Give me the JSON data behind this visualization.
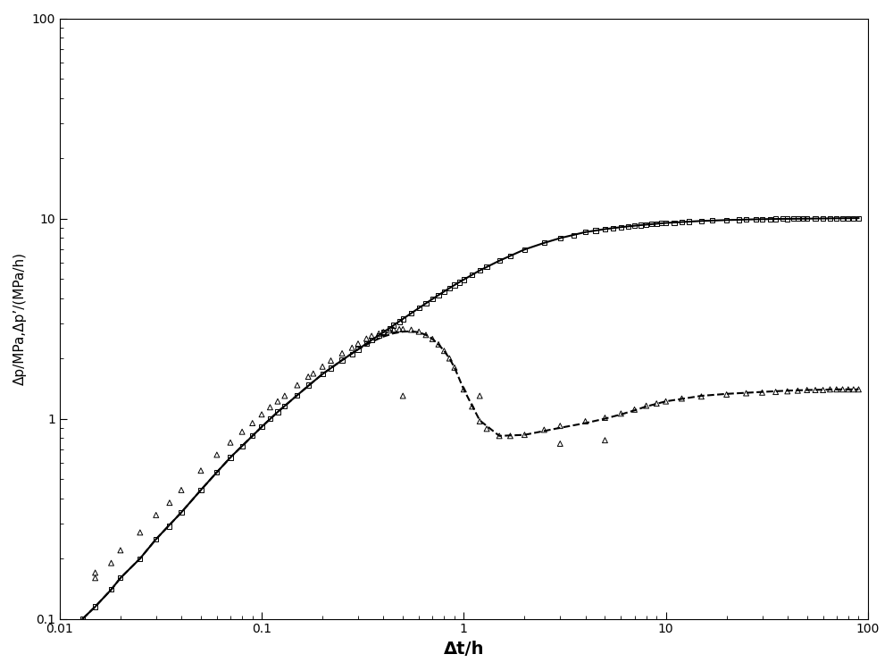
{
  "title": "",
  "xlabel": "Δt/h",
  "ylabel": "Δp/MPa,Δp’/(MPa/h)",
  "xlim": [
    0.01,
    100
  ],
  "ylim": [
    0.1,
    100
  ],
  "background_color": "#ffffff",
  "curve_upper_x": [
    0.013,
    0.015,
    0.018,
    0.02,
    0.025,
    0.03,
    0.04,
    0.05,
    0.06,
    0.07,
    0.08,
    0.09,
    0.1,
    0.12,
    0.15,
    0.18,
    0.2,
    0.25,
    0.3,
    0.35,
    0.4,
    0.45,
    0.5,
    0.6,
    0.7,
    0.8,
    0.9,
    1.0,
    1.2,
    1.5,
    2.0,
    2.5,
    3.0,
    4.0,
    5.0,
    6.0,
    7.0,
    8.0,
    10.0,
    12.0,
    15.0,
    20.0,
    25.0,
    30.0,
    40.0,
    50.0,
    60.0,
    70.0,
    80.0,
    90.0
  ],
  "curve_upper_y": [
    0.1,
    0.115,
    0.14,
    0.16,
    0.2,
    0.25,
    0.34,
    0.44,
    0.54,
    0.64,
    0.73,
    0.82,
    0.91,
    1.08,
    1.31,
    1.53,
    1.67,
    1.96,
    2.22,
    2.47,
    2.7,
    2.93,
    3.15,
    3.57,
    3.96,
    4.32,
    4.65,
    4.95,
    5.5,
    6.15,
    7.0,
    7.55,
    7.98,
    8.55,
    8.85,
    9.05,
    9.2,
    9.32,
    9.5,
    9.6,
    9.72,
    9.82,
    9.88,
    9.92,
    9.96,
    9.98,
    10.0,
    10.02,
    10.03,
    10.04
  ],
  "curve_lower_x": [
    0.013,
    0.015,
    0.018,
    0.02,
    0.025,
    0.03,
    0.04,
    0.05,
    0.06,
    0.07,
    0.08,
    0.09,
    0.1,
    0.12,
    0.15,
    0.18,
    0.2,
    0.25,
    0.3,
    0.35,
    0.4,
    0.45,
    0.5,
    0.55,
    0.6,
    0.65,
    0.7,
    0.75,
    0.8,
    0.85,
    0.9,
    1.0,
    1.2,
    1.5,
    2.0,
    3.0,
    4.0,
    5.0,
    6.0,
    7.0,
    8.0,
    10.0,
    15.0,
    20.0,
    30.0,
    40.0,
    50.0,
    70.0,
    90.0
  ],
  "curve_lower_y": [
    0.1,
    0.115,
    0.14,
    0.16,
    0.2,
    0.25,
    0.34,
    0.44,
    0.54,
    0.64,
    0.73,
    0.82,
    0.91,
    1.08,
    1.31,
    1.53,
    1.67,
    1.96,
    2.22,
    2.42,
    2.57,
    2.67,
    2.72,
    2.73,
    2.7,
    2.62,
    2.5,
    2.35,
    2.18,
    2.0,
    1.8,
    1.4,
    0.98,
    0.82,
    0.83,
    0.9,
    0.95,
    1.0,
    1.05,
    1.1,
    1.15,
    1.22,
    1.3,
    1.33,
    1.36,
    1.38,
    1.39,
    1.4,
    1.4
  ],
  "sq_x": [
    0.013,
    0.015,
    0.018,
    0.02,
    0.025,
    0.03,
    0.035,
    0.04,
    0.05,
    0.06,
    0.07,
    0.08,
    0.09,
    0.1,
    0.11,
    0.12,
    0.13,
    0.15,
    0.17,
    0.2,
    0.22,
    0.25,
    0.28,
    0.3,
    0.33,
    0.35,
    0.38,
    0.4,
    0.43,
    0.45,
    0.48,
    0.5,
    0.55,
    0.6,
    0.65,
    0.7,
    0.75,
    0.8,
    0.85,
    0.9,
    0.95,
    1.0,
    1.1,
    1.2,
    1.3,
    1.5,
    1.7,
    2.0,
    2.5,
    3.0,
    3.5,
    4.0,
    4.5,
    5.0,
    5.5,
    6.0,
    6.5,
    7.0,
    7.5,
    8.0,
    8.5,
    9.0,
    9.5,
    10.0,
    11.0,
    12.0,
    13.0,
    15.0,
    17.0,
    20.0,
    23.0,
    25.0,
    28.0,
    30.0,
    33.0,
    35.0,
    38.0,
    40.0,
    43.0,
    45.0,
    48.0,
    50.0,
    55.0,
    60.0,
    65.0,
    70.0,
    75.0,
    80.0,
    85.0,
    90.0
  ],
  "sq_y": [
    0.1,
    0.115,
    0.14,
    0.16,
    0.2,
    0.25,
    0.29,
    0.34,
    0.44,
    0.54,
    0.64,
    0.73,
    0.82,
    0.91,
    1.0,
    1.08,
    1.16,
    1.31,
    1.47,
    1.67,
    1.79,
    1.96,
    2.1,
    2.22,
    2.37,
    2.47,
    2.6,
    2.7,
    2.83,
    2.93,
    3.05,
    3.15,
    3.37,
    3.57,
    3.77,
    3.96,
    4.14,
    4.32,
    4.49,
    4.65,
    4.8,
    4.95,
    5.22,
    5.5,
    5.76,
    6.15,
    6.48,
    7.0,
    7.55,
    7.98,
    8.26,
    8.55,
    8.7,
    8.85,
    8.96,
    9.05,
    9.13,
    9.2,
    9.27,
    9.32,
    9.38,
    9.43,
    9.47,
    9.5,
    9.54,
    9.6,
    9.64,
    9.72,
    9.78,
    9.82,
    9.85,
    9.88,
    9.9,
    9.92,
    9.94,
    9.96,
    9.97,
    9.96,
    9.97,
    9.98,
    9.99,
    9.98,
    10.0,
    10.0,
    10.01,
    10.02,
    10.02,
    10.03,
    10.03,
    10.04
  ],
  "tr_x": [
    0.015,
    0.018,
    0.02,
    0.025,
    0.03,
    0.035,
    0.04,
    0.05,
    0.06,
    0.07,
    0.08,
    0.09,
    0.1,
    0.11,
    0.12,
    0.13,
    0.15,
    0.17,
    0.18,
    0.2,
    0.22,
    0.25,
    0.28,
    0.3,
    0.33,
    0.35,
    0.38,
    0.4,
    0.43,
    0.45,
    0.48,
    0.5,
    0.55,
    0.6,
    0.65,
    0.7,
    0.75,
    0.8,
    0.85,
    0.9,
    1.0,
    1.1,
    1.2,
    1.3,
    1.5,
    1.7,
    2.0,
    2.5,
    3.0,
    4.0,
    5.0,
    6.0,
    7.0,
    8.0,
    9.0,
    10.0,
    12.0,
    15.0,
    20.0,
    25.0,
    30.0,
    35.0,
    40.0,
    45.0,
    50.0,
    55.0,
    60.0,
    65.0,
    70.0,
    75.0,
    80.0,
    85.0,
    90.0
  ],
  "tr_y": [
    0.16,
    0.19,
    0.22,
    0.27,
    0.33,
    0.38,
    0.44,
    0.55,
    0.66,
    0.76,
    0.86,
    0.95,
    1.05,
    1.14,
    1.22,
    1.3,
    1.47,
    1.62,
    1.68,
    1.82,
    1.95,
    2.12,
    2.26,
    2.37,
    2.51,
    2.59,
    2.66,
    2.71,
    2.76,
    2.79,
    2.8,
    2.8,
    2.78,
    2.72,
    2.62,
    2.5,
    2.35,
    2.18,
    2.0,
    1.8,
    1.4,
    1.15,
    0.97,
    0.89,
    0.82,
    0.82,
    0.83,
    0.88,
    0.92,
    0.97,
    1.01,
    1.06,
    1.11,
    1.16,
    1.19,
    1.22,
    1.26,
    1.29,
    1.32,
    1.34,
    1.35,
    1.36,
    1.37,
    1.38,
    1.39,
    1.39,
    1.39,
    1.4,
    1.4,
    1.4,
    1.4,
    1.4,
    1.4
  ],
  "tr_outlier_x": [
    0.015,
    0.5,
    1.2,
    3.0,
    5.0
  ],
  "tr_outlier_y": [
    0.17,
    1.3,
    1.3,
    0.75,
    0.78
  ],
  "line_color": "#000000",
  "line_width": 1.5,
  "xlabel_fontsize": 14,
  "ylabel_fontsize": 11
}
